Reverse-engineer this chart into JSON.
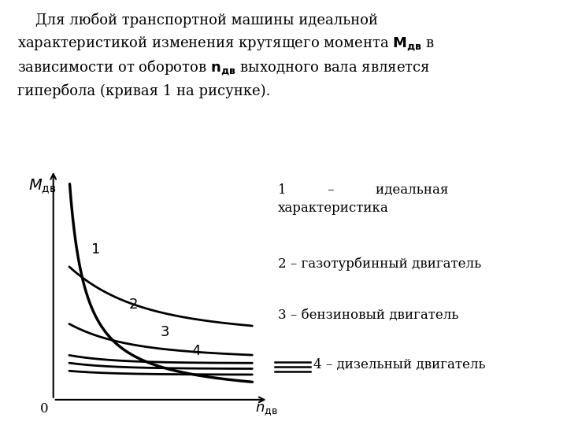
{
  "bg_color": "#ffffff",
  "line_color": "#000000",
  "label_color": "#000000",
  "font_size_text": 13,
  "font_size_legend": 12,
  "font_size_axis_label": 13,
  "paragraph_lines": [
    "    Для любой транспортной машины идеальной",
    "характеристикой изменения крутящего момента  в",
    "зависимости от оборотов  выходного вала является",
    "гипербола (кривая 1 на рисунке)."
  ],
  "legend_entry1": "1          –          идеальная\nхарактеристика",
  "legend_entry2": "2 – газотурбинный двигатель",
  "legend_entry3": "3 – бензиновый двигатель",
  "legend_entry4": "4 – дизельный двигатель",
  "curve_labels": [
    "1",
    "2",
    "3",
    "4"
  ],
  "y_axis_label": "$M_{\\mathrm{\\u0434\\u0432}}$",
  "x_axis_label": "$n_{\\mathrm{\\u0434\\u0432}}$"
}
